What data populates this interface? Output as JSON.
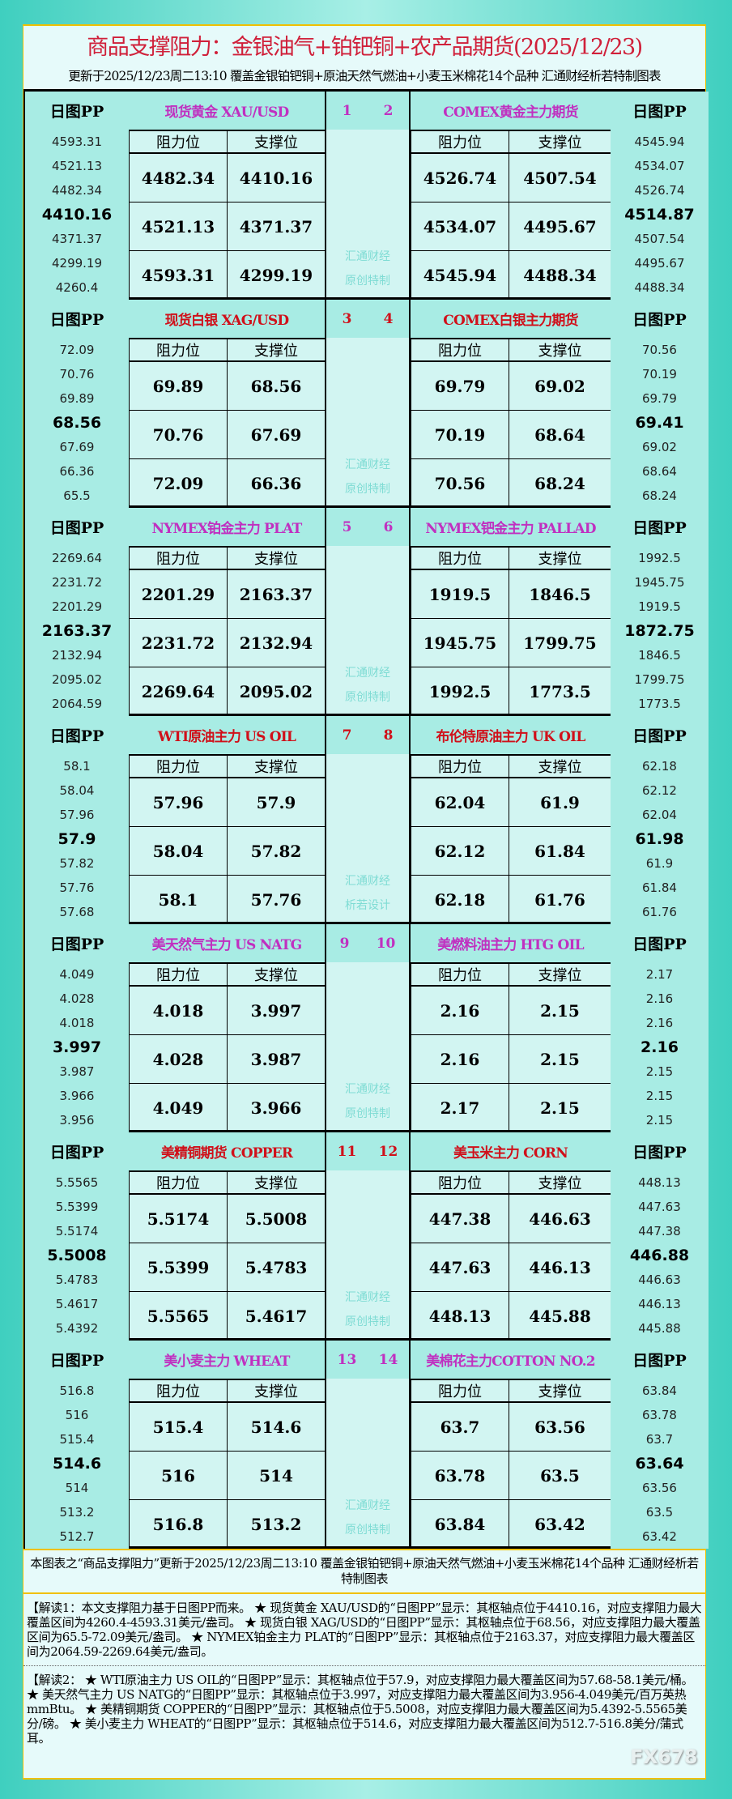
{
  "header": {
    "title": "商品支撑阻力：金银油气+铂钯铜+农产品期货(2025/12/23)",
    "subtitle": "更新于2025/12/23周二13:10 覆盖金银铂钯铜+原油天然气燃油+小麦玉米棉花14个品种 汇通财经析若特制图表"
  },
  "labels": {
    "pp": "日图PP",
    "resistance": "阻力位",
    "support": "支撑位"
  },
  "colors": {
    "magenta": "#c030c0",
    "red": "#d0101a"
  },
  "blocks": [
    {
      "left": {
        "name": "现货黄金 XAU/USD",
        "no": "1",
        "color": "#c030c0",
        "pp": [
          "4593.31",
          "4521.13",
          "4482.34",
          "4410.16",
          "4371.37",
          "4299.19",
          "4260.4"
        ],
        "rows": [
          [
            "4482.34",
            "4410.16"
          ],
          [
            "4521.13",
            "4371.37"
          ],
          [
            "4593.31",
            "4299.19"
          ]
        ]
      },
      "right": {
        "name": "COMEX黄金主力期货",
        "no": "2",
        "color": "#c030c0",
        "pp": [
          "4545.94",
          "4534.07",
          "4526.74",
          "4514.87",
          "4507.54",
          "4495.67",
          "4488.34"
        ],
        "rows": [
          [
            "4526.74",
            "4507.54"
          ],
          [
            "4534.07",
            "4495.67"
          ],
          [
            "4545.94",
            "4488.34"
          ]
        ]
      },
      "mark": [
        "汇通财经",
        "原创特制"
      ]
    },
    {
      "left": {
        "name": "现货白银 XAG/USD",
        "no": "3",
        "color": "#d0101a",
        "pp": [
          "72.09",
          "70.76",
          "69.89",
          "68.56",
          "67.69",
          "66.36",
          "65.5"
        ],
        "rows": [
          [
            "69.89",
            "68.56"
          ],
          [
            "70.76",
            "67.69"
          ],
          [
            "72.09",
            "66.36"
          ]
        ]
      },
      "right": {
        "name": "COMEX白银主力期货",
        "no": "4",
        "color": "#d0101a",
        "pp": [
          "70.56",
          "70.19",
          "69.79",
          "69.41",
          "69.02",
          "68.64",
          "68.24"
        ],
        "rows": [
          [
            "69.79",
            "69.02"
          ],
          [
            "70.19",
            "68.64"
          ],
          [
            "70.56",
            "68.24"
          ]
        ]
      },
      "mark": [
        "汇通财经",
        "原创特制"
      ]
    },
    {
      "left": {
        "name": "NYMEX铂金主力 PLAT",
        "no": "5",
        "color": "#c030c0",
        "pp": [
          "2269.64",
          "2231.72",
          "2201.29",
          "2163.37",
          "2132.94",
          "2095.02",
          "2064.59"
        ],
        "rows": [
          [
            "2201.29",
            "2163.37"
          ],
          [
            "2231.72",
            "2132.94"
          ],
          [
            "2269.64",
            "2095.02"
          ]
        ]
      },
      "right": {
        "name": "NYMEX钯金主力 PALLAD",
        "no": "6",
        "color": "#c030c0",
        "pp": [
          "1992.5",
          "1945.75",
          "1919.5",
          "1872.75",
          "1846.5",
          "1799.75",
          "1773.5"
        ],
        "rows": [
          [
            "1919.5",
            "1846.5"
          ],
          [
            "1945.75",
            "1799.75"
          ],
          [
            "1992.5",
            "1773.5"
          ]
        ]
      },
      "mark": [
        "汇通财经",
        "原创特制"
      ]
    },
    {
      "left": {
        "name": "WTI原油主力 US OIL",
        "no": "7",
        "color": "#d0101a",
        "pp": [
          "58.1",
          "58.04",
          "57.96",
          "57.9",
          "57.82",
          "57.76",
          "57.68"
        ],
        "rows": [
          [
            "57.96",
            "57.9"
          ],
          [
            "58.04",
            "57.82"
          ],
          [
            "58.1",
            "57.76"
          ]
        ]
      },
      "right": {
        "name": "布伦特原油主力 UK OIL",
        "no": "8",
        "color": "#d0101a",
        "pp": [
          "62.18",
          "62.12",
          "62.04",
          "61.98",
          "61.9",
          "61.84",
          "61.76"
        ],
        "rows": [
          [
            "62.04",
            "61.9"
          ],
          [
            "62.12",
            "61.84"
          ],
          [
            "62.18",
            "61.76"
          ]
        ]
      },
      "mark": [
        "汇通财经",
        "析若设计"
      ]
    },
    {
      "left": {
        "name": "美天然气主力 US NATG",
        "no": "9",
        "color": "#c030c0",
        "pp": [
          "4.049",
          "4.028",
          "4.018",
          "3.997",
          "3.987",
          "3.966",
          "3.956"
        ],
        "rows": [
          [
            "4.018",
            "3.997"
          ],
          [
            "4.028",
            "3.987"
          ],
          [
            "4.049",
            "3.966"
          ]
        ]
      },
      "right": {
        "name": "美燃料油主力 HTG OIL",
        "no": "10",
        "color": "#c030c0",
        "pp": [
          "2.17",
          "2.16",
          "2.16",
          "2.16",
          "2.15",
          "2.15",
          "2.15"
        ],
        "rows": [
          [
            "2.16",
            "2.15"
          ],
          [
            "2.16",
            "2.15"
          ],
          [
            "2.17",
            "2.15"
          ]
        ]
      },
      "mark": [
        "汇通财经",
        "原创特制"
      ]
    },
    {
      "left": {
        "name": "美精铜期货 COPPER",
        "no": "11",
        "color": "#d0101a",
        "pp": [
          "5.5565",
          "5.5399",
          "5.5174",
          "5.5008",
          "5.4783",
          "5.4617",
          "5.4392"
        ],
        "rows": [
          [
            "5.5174",
            "5.5008"
          ],
          [
            "5.5399",
            "5.4783"
          ],
          [
            "5.5565",
            "5.4617"
          ]
        ]
      },
      "right": {
        "name": "美玉米主力 CORN",
        "no": "12",
        "color": "#d0101a",
        "pp": [
          "448.13",
          "447.63",
          "447.38",
          "446.88",
          "446.63",
          "446.13",
          "445.88"
        ],
        "rows": [
          [
            "447.38",
            "446.63"
          ],
          [
            "447.63",
            "446.13"
          ],
          [
            "448.13",
            "445.88"
          ]
        ]
      },
      "mark": [
        "汇通财经",
        "原创特制"
      ]
    },
    {
      "left": {
        "name": "美小麦主力 WHEAT",
        "no": "13",
        "color": "#c030c0",
        "pp": [
          "516.8",
          "516",
          "515.4",
          "514.6",
          "514",
          "513.2",
          "512.7"
        ],
        "rows": [
          [
            "515.4",
            "514.6"
          ],
          [
            "516",
            "514"
          ],
          [
            "516.8",
            "513.2"
          ]
        ]
      },
      "right": {
        "name": "美棉花主力COTTON NO.2",
        "no": "14",
        "color": "#c030c0",
        "pp": [
          "63.84",
          "63.78",
          "63.7",
          "63.64",
          "63.56",
          "63.5",
          "63.42"
        ],
        "rows": [
          [
            "63.7",
            "63.56"
          ],
          [
            "63.78",
            "63.5"
          ],
          [
            "63.84",
            "63.42"
          ]
        ]
      },
      "mark": [
        "汇通财经",
        "原创特制"
      ]
    }
  ],
  "footer": {
    "note": "本图表之“商品支撑阻力”更新于2025/12/23周二13:10 覆盖金银铂钯铜+原油天然气燃油+小麦玉米棉花14个品种 汇通财经析若特制图表",
    "explain1": "【解读1：本文支撑阻力基于日图PP而来。 ★ 现货黄金 XAU/USD的“日图PP”显示：其枢轴点位于4410.16，对应支撑阻力最大覆盖区间为4260.4-4593.31美元/盎司。 ★ 现货白银 XAG/USD的“日图PP”显示：其枢轴点位于68.56，对应支撑阻力最大覆盖区间为65.5-72.09美元/盎司。 ★ NYMEX铂金主力 PLAT的“日图PP”显示：其枢轴点位于2163.37，对应支撑阻力最大覆盖区间为2064.59-2269.64美元/盎司。",
    "explain2": "【解读2： ★ WTI原油主力 US OIL的“日图PP”显示：其枢轴点位于57.9，对应支撑阻力最大覆盖区间为57.68-58.1美元/桶。 ★ 美天然气主力 US NATG的“日图PP”显示：其枢轴点位于3.997，对应支撑阻力最大覆盖区间为3.956-4.049美元/百万英热mmBtu。 ★ 美精铜期货 COPPER的“日图PP”显示：其枢轴点位于5.5008，对应支撑阻力最大覆盖区间为5.4392-5.5565美分/磅。 ★ 美小麦主力 WHEAT的“日图PP”显示：其枢轴点位于514.6，对应支撑阻力最大覆盖区间为512.7-516.8美分/蒲式耳。",
    "logo": "FX678"
  }
}
